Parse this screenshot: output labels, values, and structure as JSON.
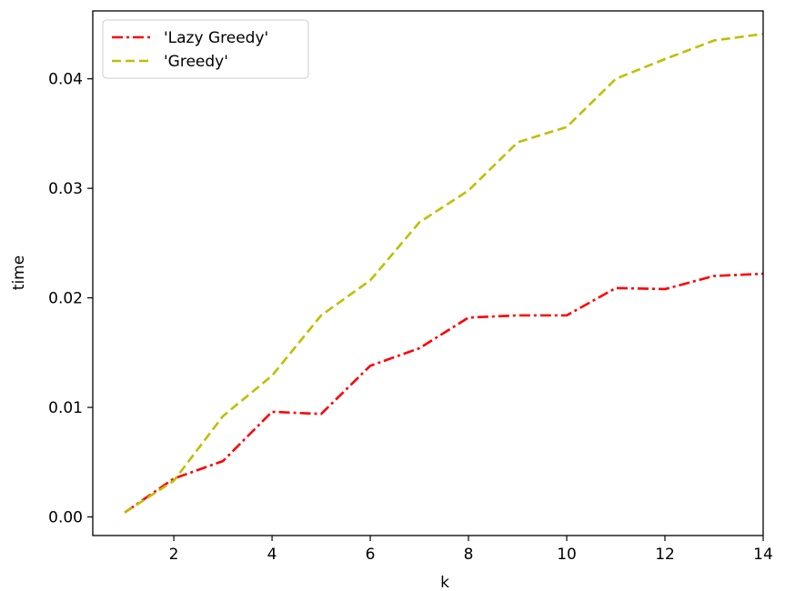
{
  "chart_data": {
    "type": "line",
    "xlabel": "k",
    "ylabel": "time",
    "xlim": [
      0.35,
      14.0
    ],
    "ylim": [
      -0.0017,
      0.0462
    ],
    "xticks": [
      2,
      4,
      6,
      8,
      10,
      12,
      14
    ],
    "yticks": [
      0.0,
      0.01,
      0.02,
      0.03,
      0.04
    ],
    "ytick_labels": [
      "0.00",
      "0.01",
      "0.02",
      "0.03",
      "0.04"
    ],
    "grid": false,
    "legend_position": "top-left",
    "x": [
      1,
      2,
      3,
      4,
      5,
      6,
      7,
      8,
      9,
      10,
      11,
      12,
      13,
      14
    ],
    "series": [
      {
        "name": "'Lazy Greedy'",
        "color": "#ff0000",
        "line_style": "dash-dot",
        "values": [
          0.0004,
          0.0035,
          0.0051,
          0.0096,
          0.0094,
          0.0138,
          0.0154,
          0.0182,
          0.0184,
          0.0184,
          0.0209,
          0.0208,
          0.022,
          0.0222
        ]
      },
      {
        "name": "'Greedy'",
        "color": "#bfbf00",
        "line_style": "dashed",
        "values": [
          0.0004,
          0.0033,
          0.0092,
          0.0129,
          0.0184,
          0.0216,
          0.0269,
          0.0298,
          0.0342,
          0.0356,
          0.04,
          0.0418,
          0.0435,
          0.0441
        ]
      }
    ]
  }
}
